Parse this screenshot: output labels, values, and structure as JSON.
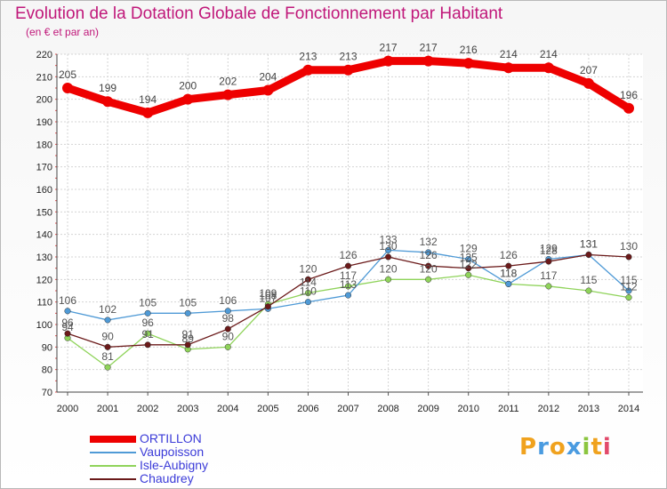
{
  "title": "Evolution de la Dotation Globale de Fonctionnement par Habitant",
  "subtitle": "(en € et par an)",
  "logo": "Proxiti",
  "chart_data": {
    "type": "line",
    "x": [
      2000,
      2001,
      2002,
      2003,
      2004,
      2005,
      2006,
      2007,
      2008,
      2009,
      2010,
      2011,
      2012,
      2013,
      2014
    ],
    "ylim": [
      70,
      220
    ],
    "yticks": [
      70,
      80,
      90,
      100,
      110,
      120,
      130,
      140,
      150,
      160,
      170,
      180,
      190,
      200,
      210,
      220
    ],
    "grid": true,
    "legend_placement": "bottom-left",
    "series": [
      {
        "name": "ORTILLON",
        "color": "#ee0000",
        "values": [
          205,
          199,
          194,
          200,
          202,
          204,
          213,
          213,
          217,
          217,
          216,
          214,
          214,
          207,
          196
        ]
      },
      {
        "name": "Vaupoisson",
        "color": "#4f9ad6",
        "values": [
          106,
          102,
          105,
          105,
          106,
          107,
          110,
          113,
          133,
          132,
          129,
          118,
          129,
          131,
          115
        ]
      },
      {
        "name": "Isle-Aubigny",
        "color": "#8fd35a",
        "values": [
          94,
          81,
          96,
          89,
          90,
          109,
          114,
          117,
          120,
          120,
          122,
          118,
          117,
          115,
          112
        ]
      },
      {
        "name": "Chaudrey",
        "color": "#6b1a1a",
        "values": [
          96,
          90,
          91,
          91,
          98,
          108,
          120,
          126,
          130,
          126,
          125,
          126,
          128,
          131,
          130
        ]
      }
    ]
  }
}
